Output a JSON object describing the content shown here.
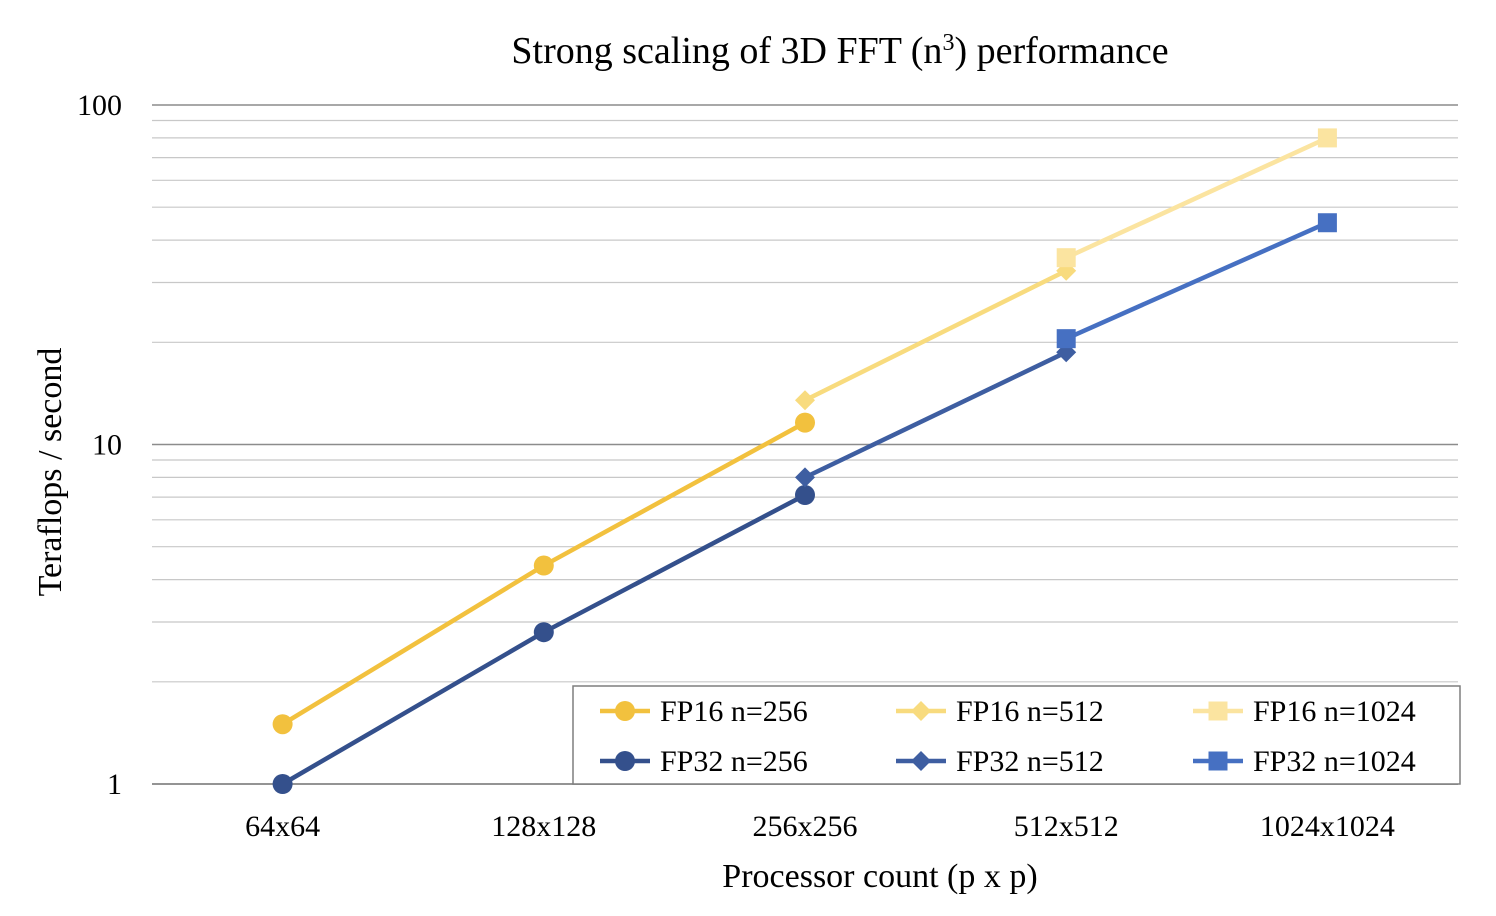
{
  "chart_data": {
    "type": "line",
    "title": "Strong scaling of 3D FFT (n",
    "title_superscript": "3",
    "title_suffix": ") performance",
    "xlabel": "Processor count (p x p)",
    "ylabel": "Teraflops / second",
    "y_scale": "log",
    "ylim": [
      1,
      100
    ],
    "y_tick_labels": [
      "1",
      "10",
      "100"
    ],
    "grid": "horizontal major and minor",
    "legend_position": "bottom-right",
    "categories": [
      "64x64",
      "128x128",
      "256x256",
      "512x512",
      "1024x1024"
    ],
    "series": [
      {
        "name": "FP16 n=256",
        "color": "#F2C13E",
        "marker": "circle",
        "values": [
          1.5,
          4.4,
          11.6,
          null,
          null
        ]
      },
      {
        "name": "FP16 n=512",
        "color": "#F8DB7E",
        "marker": "diamond",
        "values": [
          null,
          null,
          13.5,
          32.5,
          null
        ]
      },
      {
        "name": "FP16 n=1024",
        "color": "#FBE4A0",
        "marker": "square",
        "values": [
          null,
          null,
          null,
          35.5,
          80
        ]
      },
      {
        "name": "FP32 n=256",
        "color": "#34508C",
        "marker": "circle",
        "values": [
          1.0,
          2.8,
          7.1,
          null,
          null
        ]
      },
      {
        "name": "FP32 n=512",
        "color": "#3E5EA1",
        "marker": "diamond",
        "values": [
          null,
          null,
          8.0,
          18.7,
          null
        ]
      },
      {
        "name": "FP32 n=1024",
        "color": "#4670C2",
        "marker": "square",
        "values": [
          null,
          null,
          null,
          20.5,
          45
        ]
      }
    ]
  }
}
